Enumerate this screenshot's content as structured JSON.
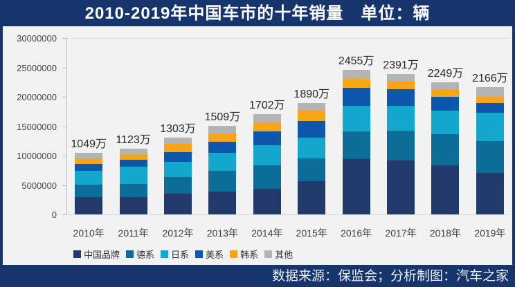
{
  "title": {
    "text": "2010-2019年中国车市的十年销量　单位：辆"
  },
  "footer": {
    "text": "数据来源：保监会；分析制图：汽车之家"
  },
  "colors": {
    "frame_navy": "#17356d",
    "panel_bg": "#f2f2f3",
    "axis_gray": "#b9b9bc",
    "title_text": "#ffffff",
    "bar_label_text": "#282828"
  },
  "chart_data": {
    "type": "bar",
    "stacked": true,
    "title": "2010-2019年中国车市的十年销量",
    "unit": "辆",
    "values_unit": "万辆",
    "categories": [
      "2010年",
      "2011年",
      "2012年",
      "2013年",
      "2014年",
      "2015年",
      "2016年",
      "2017年",
      "2018年",
      "2019年"
    ],
    "totals_label": [
      "1049万",
      "1123万",
      "1303万",
      "1509万",
      "1702万",
      "1890万",
      "2455万",
      "2391万",
      "2249万",
      "2166万"
    ],
    "totals_wan": [
      1049,
      1123,
      1303,
      1509,
      1702,
      1890,
      2455,
      2391,
      2249,
      2166
    ],
    "series": [
      {
        "name": "中国品牌",
        "color": "#203a69",
        "values": [
          300,
          296,
          356,
          385,
          438,
          567,
          940,
          918,
          830,
          706
        ]
      },
      {
        "name": "德系",
        "color": "#0d6d99",
        "values": [
          210,
          216,
          275,
          352,
          402,
          392,
          470,
          508,
          540,
          540
        ]
      },
      {
        "name": "日系",
        "color": "#14a7cd",
        "values": [
          228,
          300,
          259,
          310,
          334,
          353,
          432,
          420,
          400,
          486
        ]
      },
      {
        "name": "美系",
        "color": "#0d57ac",
        "values": [
          116,
          118,
          165,
          185,
          238,
          280,
          306,
          285,
          228,
          168
        ]
      },
      {
        "name": "韩系",
        "color": "#f8a51b",
        "values": [
          97,
          98,
          148,
          147,
          155,
          172,
          160,
          145,
          135,
          100
        ]
      },
      {
        "name": "其他",
        "color": "#b4b4b6",
        "values": [
          98,
          95,
          100,
          130,
          135,
          126,
          147,
          115,
          116,
          166
        ]
      }
    ],
    "y_axis": {
      "min": 0,
      "max": 30000000,
      "tick_labels": [
        "0",
        "5000000",
        "10000000",
        "15000000",
        "20000000",
        "25000000",
        "30000000"
      ]
    },
    "legend_position": "bottom",
    "gridlines": false
  }
}
